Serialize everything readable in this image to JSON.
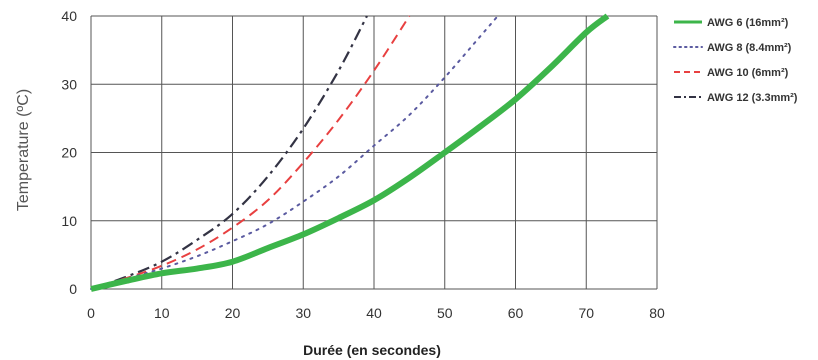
{
  "chart_data": {
    "type": "line",
    "title": "",
    "xlabel": "Durée (en secondes)",
    "ylabel": "Temperature (ºC)",
    "xlim": [
      0,
      80
    ],
    "ylim": [
      0,
      40
    ],
    "x_ticks": [
      "0",
      "10",
      "20",
      "30",
      "40",
      "50",
      "60",
      "70",
      "80"
    ],
    "y_ticks": [
      "0",
      "10",
      "20",
      "30",
      "40"
    ],
    "grid": true,
    "legend_position": "right",
    "series": [
      {
        "name": "AWG 6 (16mm²)",
        "color": "#3cb54a",
        "style": "solid",
        "x": [
          0,
          5,
          10,
          15,
          20,
          25,
          30,
          35,
          40,
          45,
          50,
          55,
          60,
          65,
          70,
          73
        ],
        "y": [
          0,
          1.2,
          2.3,
          3.0,
          4.0,
          6.0,
          8.0,
          10.4,
          13.0,
          16.3,
          20.0,
          23.8,
          27.8,
          32.5,
          37.6,
          40
        ]
      },
      {
        "name": "AWG 8 (8.4mm²)",
        "color": "#5a5aa0",
        "style": "dotted",
        "x": [
          0,
          5,
          10,
          15,
          20,
          25,
          30,
          35,
          40,
          45,
          50,
          55,
          57.5
        ],
        "y": [
          0,
          1.5,
          3.0,
          4.8,
          7.0,
          9.5,
          12.8,
          16.5,
          21.0,
          25.5,
          31.0,
          37.0,
          40
        ]
      },
      {
        "name": "AWG 10 (6mm²)",
        "color": "#e84040",
        "style": "dashed",
        "x": [
          0,
          5,
          10,
          15,
          20,
          25,
          30,
          35,
          40,
          45
        ],
        "y": [
          0,
          1.6,
          3.4,
          5.8,
          9.0,
          13.0,
          18.5,
          24.8,
          32.0,
          40
        ]
      },
      {
        "name": "AWG 12 (3.3mm²)",
        "color": "#333344",
        "style": "dashdot",
        "x": [
          0,
          5,
          10,
          15,
          20,
          25,
          30,
          35,
          39
        ],
        "y": [
          0,
          1.8,
          4.0,
          7.2,
          11.0,
          16.5,
          23.5,
          32.0,
          40
        ]
      }
    ]
  }
}
